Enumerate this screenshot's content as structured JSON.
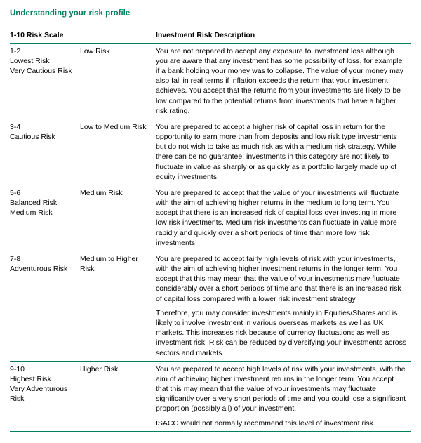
{
  "title": "Understanding your risk profile",
  "headers": {
    "col1": "1-10 Risk Scale",
    "col2": "",
    "col3": "Investment Risk Description"
  },
  "rows": {
    "r1": {
      "range": "1-2",
      "label1": "Lowest Risk",
      "label2": "Very Cautious Risk",
      "level": "Low Risk",
      "desc": "You are not prepared to accept any exposure to investment loss although you are aware that any investment has some possibility of loss, for example if a bank holding your money was to collapse. The value of your money may also fall in real terms if inflation exceeds the return that your investment achieves. You accept that the returns from your investments are likely to be low compared to the potential returns from investments that have a higher risk rating."
    },
    "r2": {
      "range": "3-4",
      "label1": "Cautious Risk",
      "label2": "",
      "level": "Low to Medium Risk",
      "desc": "You are prepared to accept a higher risk of capital loss in return for the opportunity to earn more than from deposits and low risk type investments but do not wish to take as much risk as with a medium risk strategy.  While there can be no guarantee, investments in this category are not likely to fluctuate in value as sharply or as quickly as a portfolio largely made up of equity investments."
    },
    "r3": {
      "range": "5-6",
      "label1": "Balanced Risk",
      "label2": "Medium Risk",
      "level": "Medium Risk",
      "desc": "You are prepared to accept that the value of your investments will fluctuate with the aim of achieving higher returns in the medium to long term. You accept that there is an increased risk of capital loss over investing in more low risk investments. Medium risk investments can fluctuate in value more rapidly and quickly over a short periods of time than more low risk investments."
    },
    "r4": {
      "range": "7-8",
      "label1": "Adventurous Risk",
      "label2": "",
      "level": "Medium to Higher Risk",
      "desc": "You are prepared to accept fairly high levels of risk with your investments, with the aim of achieving higher investment returns in the longer term.  You accept that this may mean that the value of your investments may fluctuate considerably over a short periods of time and that there is an increased risk of capital loss compared with a lower risk investment strategy",
      "desc2": "Therefore, you may consider investments mainly in Equities/Shares and is likely to involve investment in various overseas markets as well as UK markets. This increases risk because of currency fluctuations as well as investment risk. Risk can be reduced by diversifying your investments across sectors and markets."
    },
    "r5": {
      "range": "9-10",
      "label1": "Highest Risk",
      "label2": "Very Adventurous Risk",
      "level": "Higher Risk",
      "desc": "You are prepared to accept high levels of risk with your investments, with the aim of achieving higher investment returns in the longer term. You accept that this may mean that the value of your investments may fluctuate significantly over a very short periods of time and you could lose a significant proportion (possibly all) of your investment.",
      "desc2": "ISACO would not normally recommend this level of investment risk."
    }
  }
}
